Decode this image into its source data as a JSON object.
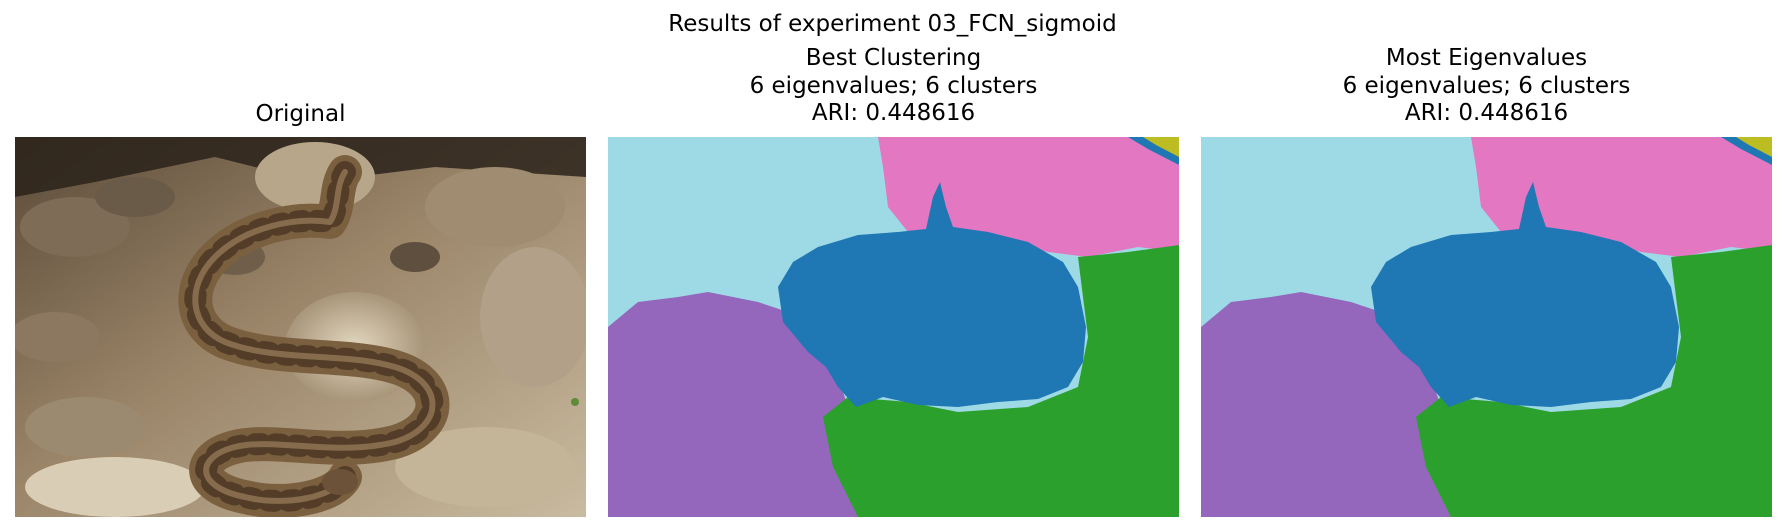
{
  "figure": {
    "suptitle": "Results of experiment 03_FCN_sigmoid"
  },
  "panels": [
    {
      "title": "Original",
      "image": "photo of a coiled rattlesnake on rocks"
    },
    {
      "title": "Best Clustering\n6 eigenvalues; 6 clusters\nARI: 0.448616",
      "image": "segmentation map"
    },
    {
      "title": "Most Eigenvalues\n6 eigenvalues; 6 clusters\nARI: 0.448616",
      "image": "segmentation map"
    }
  ],
  "colors": {
    "cluster_light_blue": "#9edae5",
    "cluster_pink": "#e377c2",
    "cluster_blue": "#1f77b4",
    "cluster_purple": "#9467bd",
    "cluster_green": "#2ca02c",
    "cluster_olive": "#bcbd22",
    "photo_background": "#8a7559",
    "snake_body": "#7b6040"
  }
}
